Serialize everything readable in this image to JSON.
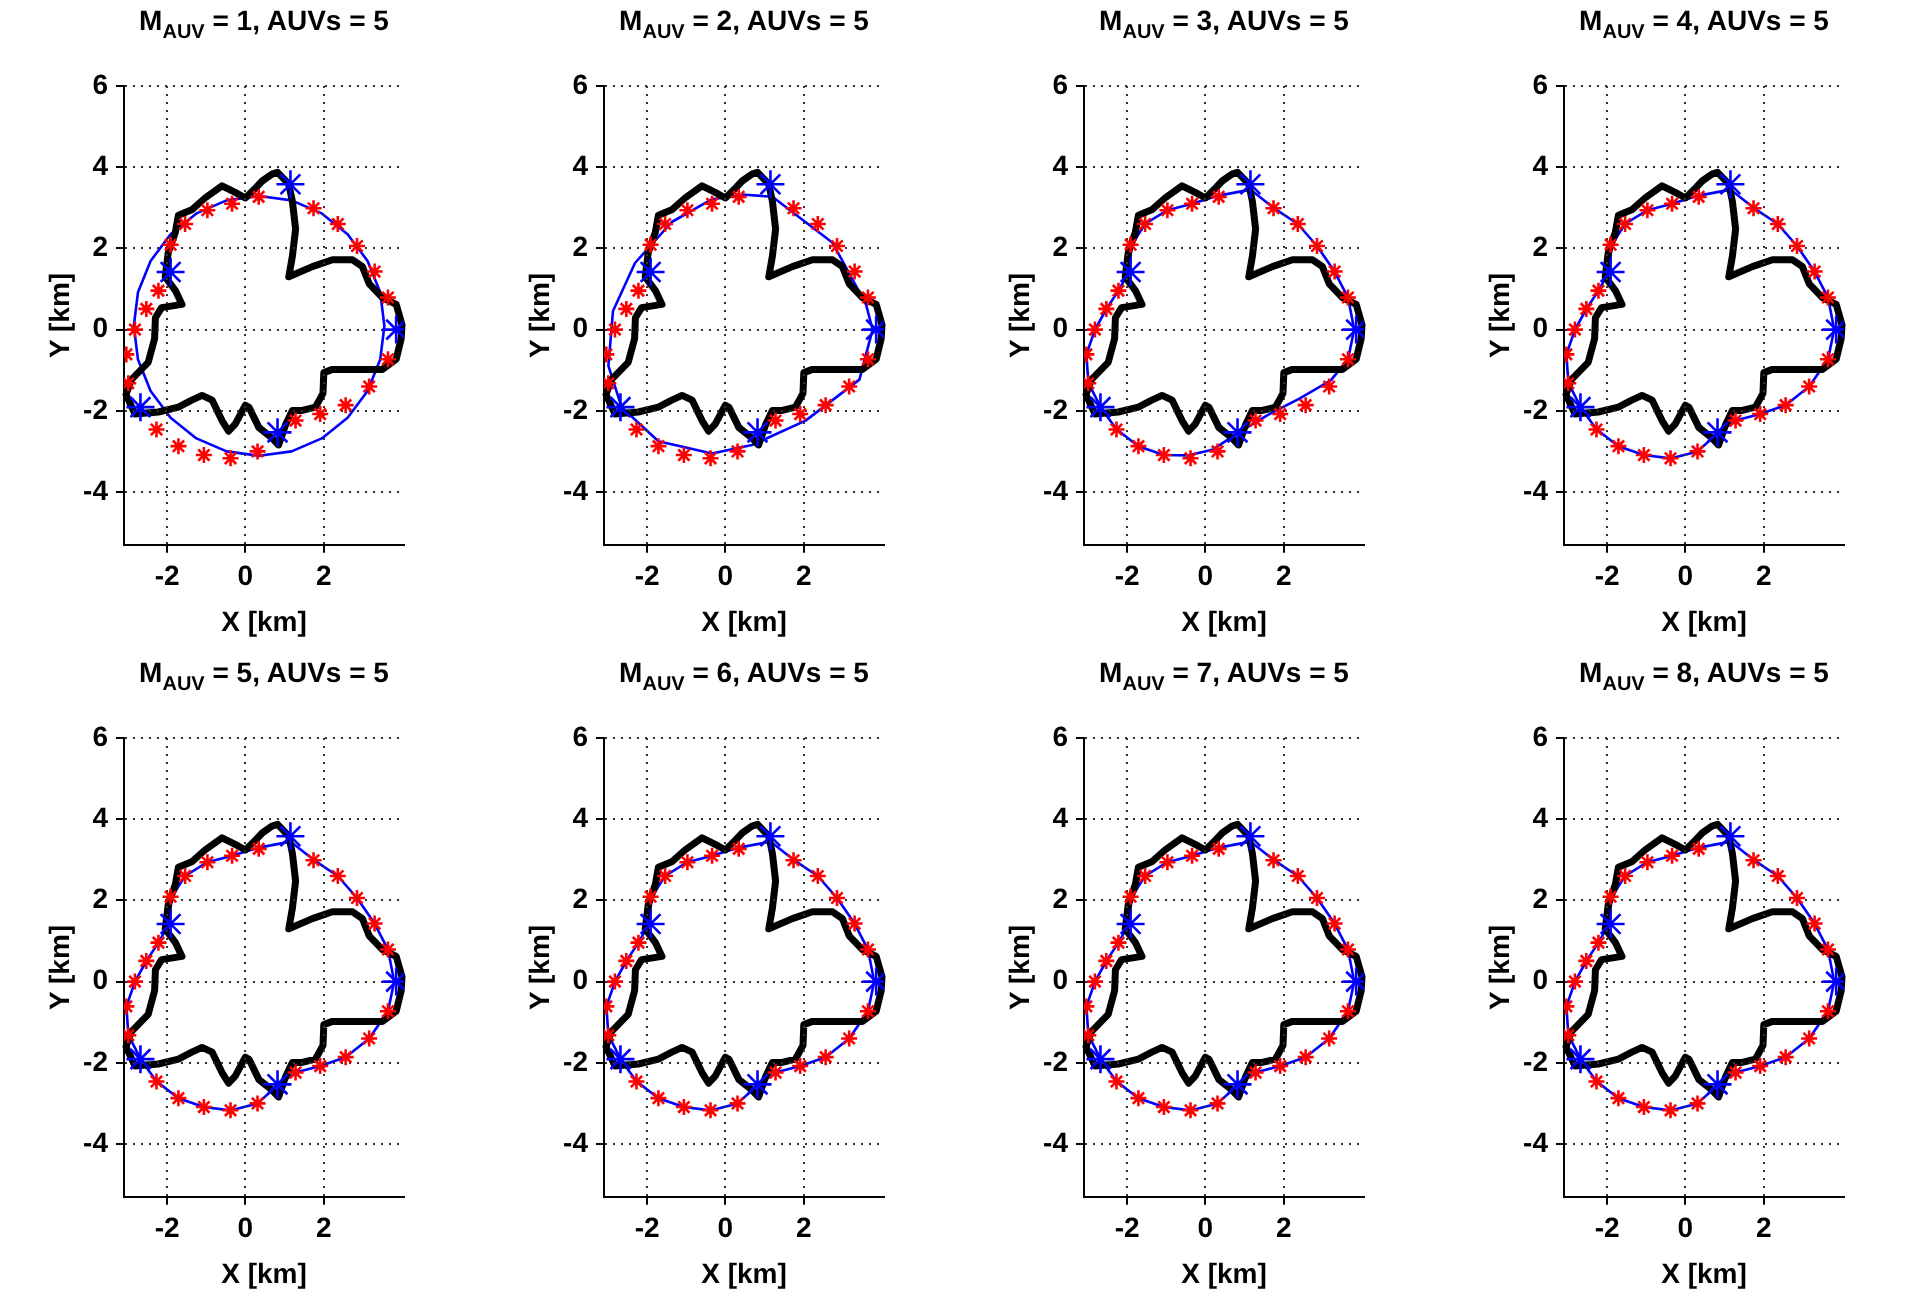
{
  "chart_data": [
    {
      "type": "scatter",
      "title": "M$_{AUV}$ = 1, AUVs = 5",
      "xlabel": "X [km]",
      "ylabel": "Y [km]",
      "xlim": [
        -3.1,
        4.05
      ],
      "ylim": [
        -5.3,
        6
      ],
      "xticks": [
        -2,
        0,
        2
      ],
      "yticks": [
        -4,
        -2,
        0,
        2,
        4,
        6
      ],
      "grid": true,
      "legend": false,
      "series": [
        {
          "type": "scatter",
          "color": "#ff0000",
          "marker": "cross",
          "x": [
            0.34,
            -0.34,
            -0.97,
            -1.54,
            -1.91,
            -2.22,
            -2.53,
            -2.82,
            -3.04,
            -2.99,
            -2.27,
            -1.71,
            -1.06,
            -0.38,
            0.31,
            1.28,
            1.91,
            2.56,
            3.16,
            3.64,
            3.64,
            3.3,
            2.85,
            2.36,
            1.74
          ],
          "values": [
            3.27,
            3.1,
            2.94,
            2.6,
            2.09,
            0.96,
            0.51,
            0,
            -0.61,
            -1.32,
            -2.46,
            -2.87,
            -3.09,
            -3.17,
            -3.0,
            -2.24,
            -2.08,
            -1.86,
            -1.4,
            -0.73,
            0.79,
            1.43,
            2.06,
            2.6,
            2.99
          ]
        },
        {
          "type": "scatter",
          "color": "#0000ff",
          "marker": "cross",
          "x": [
            1.15,
            -1.91,
            -2.68,
            0.82,
            3.85
          ],
          "values": [
            3.58,
            1.42,
            -1.91,
            -2.53,
            0
          ]
        }
      ]
    },
    {
      "type": "scatter",
      "title": "M$_{AUV}$ = 2, AUVs = 5",
      "xlabel": "X [km]",
      "ylabel": "Y [km]",
      "xlim": [
        -3.1,
        4.05
      ],
      "ylim": [
        -5.3,
        6
      ],
      "xticks": [
        -2,
        0,
        2
      ],
      "yticks": [
        -4,
        -2,
        0,
        2,
        4,
        6
      ],
      "grid": true,
      "legend": false,
      "series": [
        {
          "type": "scatter",
          "color": "#ff0000",
          "marker": "cross",
          "x": [
            0.34,
            -0.34,
            -0.97,
            -1.54,
            -1.91,
            -2.22,
            -2.53,
            -2.82,
            -3.04,
            -2.99,
            -2.27,
            -1.71,
            -1.06,
            -0.38,
            0.31,
            1.28,
            1.91,
            2.56,
            3.16,
            3.64,
            3.64,
            3.3,
            2.85,
            2.36,
            1.74
          ],
          "values": [
            3.27,
            3.1,
            2.94,
            2.6,
            2.09,
            0.96,
            0.51,
            0,
            -0.61,
            -1.32,
            -2.46,
            -2.87,
            -3.09,
            -3.17,
            -3.0,
            -2.24,
            -2.08,
            -1.86,
            -1.4,
            -0.73,
            0.79,
            1.43,
            2.06,
            2.6,
            2.99
          ]
        },
        {
          "type": "scatter",
          "color": "#0000ff",
          "marker": "cross",
          "x": [
            1.15,
            -1.91,
            -2.68,
            0.82,
            3.85
          ],
          "values": [
            3.58,
            1.42,
            -1.91,
            -2.53,
            0
          ]
        }
      ]
    },
    {
      "type": "scatter",
      "title": "M$_{AUV}$ = 3, AUVs = 5",
      "xlabel": "X [km]",
      "ylabel": "Y [km]",
      "xlim": [
        -3.1,
        4.05
      ],
      "ylim": [
        -5.3,
        6
      ],
      "xticks": [
        -2,
        0,
        2
      ],
      "yticks": [
        -4,
        -2,
        0,
        2,
        4,
        6
      ],
      "grid": true,
      "legend": false,
      "series": [
        {
          "type": "scatter",
          "color": "#ff0000",
          "marker": "cross",
          "x": [
            0.34,
            -0.34,
            -0.97,
            -1.54,
            -1.91,
            -2.22,
            -2.53,
            -2.82,
            -3.04,
            -2.99,
            -2.27,
            -1.71,
            -1.06,
            -0.38,
            0.31,
            1.28,
            1.91,
            2.56,
            3.16,
            3.64,
            3.64,
            3.3,
            2.85,
            2.36,
            1.74
          ],
          "values": [
            3.27,
            3.1,
            2.94,
            2.6,
            2.09,
            0.96,
            0.51,
            0,
            -0.61,
            -1.32,
            -2.46,
            -2.87,
            -3.09,
            -3.17,
            -3.0,
            -2.24,
            -2.08,
            -1.86,
            -1.4,
            -0.73,
            0.79,
            1.43,
            2.06,
            2.6,
            2.99
          ]
        },
        {
          "type": "scatter",
          "color": "#0000ff",
          "marker": "cross",
          "x": [
            1.15,
            -1.91,
            -2.68,
            0.82,
            3.85
          ],
          "values": [
            3.58,
            1.42,
            -1.91,
            -2.53,
            0
          ]
        }
      ]
    },
    {
      "type": "scatter",
      "title": "M$_{AUV}$ = 4, AUVs = 5",
      "xlabel": "X [km]",
      "ylabel": "Y [km]",
      "xlim": [
        -3.1,
        4.05
      ],
      "ylim": [
        -5.3,
        6
      ],
      "xticks": [
        -2,
        0,
        2
      ],
      "yticks": [
        -4,
        -2,
        0,
        2,
        4,
        6
      ],
      "grid": true,
      "legend": false,
      "series": [
        {
          "type": "scatter",
          "color": "#ff0000",
          "marker": "cross",
          "x": [
            0.34,
            -0.34,
            -0.97,
            -1.54,
            -1.91,
            -2.22,
            -2.53,
            -2.82,
            -3.04,
            -2.99,
            -2.27,
            -1.71,
            -1.06,
            -0.38,
            0.31,
            1.28,
            1.91,
            2.56,
            3.16,
            3.64,
            3.64,
            3.3,
            2.85,
            2.36,
            1.74
          ],
          "values": [
            3.27,
            3.1,
            2.94,
            2.6,
            2.09,
            0.96,
            0.51,
            0,
            -0.61,
            -1.32,
            -2.46,
            -2.87,
            -3.09,
            -3.17,
            -3.0,
            -2.24,
            -2.08,
            -1.86,
            -1.4,
            -0.73,
            0.79,
            1.43,
            2.06,
            2.6,
            2.99
          ]
        },
        {
          "type": "scatter",
          "color": "#0000ff",
          "marker": "cross",
          "x": [
            1.15,
            -1.91,
            -2.68,
            0.82,
            3.85
          ],
          "values": [
            3.58,
            1.42,
            -1.91,
            -2.53,
            0
          ]
        }
      ]
    },
    {
      "type": "scatter",
      "title": "M$_{AUV}$ = 5, AUVs = 5",
      "xlabel": "X [km]",
      "ylabel": "Y [km]",
      "xlim": [
        -3.1,
        4.05
      ],
      "ylim": [
        -5.3,
        6
      ],
      "xticks": [
        -2,
        0,
        2
      ],
      "yticks": [
        -4,
        -2,
        0,
        2,
        4,
        6
      ],
      "grid": true,
      "legend": false,
      "series": [
        {
          "type": "scatter",
          "color": "#ff0000",
          "marker": "cross",
          "x": [
            0.34,
            -0.34,
            -0.97,
            -1.54,
            -1.91,
            -2.22,
            -2.53,
            -2.82,
            -3.04,
            -2.99,
            -2.27,
            -1.71,
            -1.06,
            -0.38,
            0.31,
            1.28,
            1.91,
            2.56,
            3.16,
            3.64,
            3.64,
            3.3,
            2.85,
            2.36,
            1.74
          ],
          "values": [
            3.27,
            3.1,
            2.94,
            2.6,
            2.09,
            0.96,
            0.51,
            0,
            -0.61,
            -1.32,
            -2.46,
            -2.87,
            -3.09,
            -3.17,
            -3.0,
            -2.24,
            -2.08,
            -1.86,
            -1.4,
            -0.73,
            0.79,
            1.43,
            2.06,
            2.6,
            2.99
          ]
        },
        {
          "type": "scatter",
          "color": "#0000ff",
          "marker": "cross",
          "x": [
            1.15,
            -1.91,
            -2.68,
            0.82,
            3.85
          ],
          "values": [
            3.58,
            1.42,
            -1.91,
            -2.53,
            0
          ]
        }
      ]
    },
    {
      "type": "scatter",
      "title": "M$_{AUV}$ = 6, AUVs = 5",
      "xlabel": "X [km]",
      "ylabel": "Y [km]",
      "xlim": [
        -3.1,
        4.05
      ],
      "ylim": [
        -5.3,
        6
      ],
      "xticks": [
        -2,
        0,
        2
      ],
      "yticks": [
        -4,
        -2,
        0,
        2,
        4,
        6
      ],
      "grid": true,
      "legend": false,
      "series": [
        {
          "type": "scatter",
          "color": "#ff0000",
          "marker": "cross",
          "x": [
            0.34,
            -0.34,
            -0.97,
            -1.54,
            -1.91,
            -2.22,
            -2.53,
            -2.82,
            -3.04,
            -2.99,
            -2.27,
            -1.71,
            -1.06,
            -0.38,
            0.31,
            1.28,
            1.91,
            2.56,
            3.16,
            3.64,
            3.64,
            3.3,
            2.85,
            2.36,
            1.74
          ],
          "values": [
            3.27,
            3.1,
            2.94,
            2.6,
            2.09,
            0.96,
            0.51,
            0,
            -0.61,
            -1.32,
            -2.46,
            -2.87,
            -3.09,
            -3.17,
            -3.0,
            -2.24,
            -2.08,
            -1.86,
            -1.4,
            -0.73,
            0.79,
            1.43,
            2.06,
            2.6,
            2.99
          ]
        },
        {
          "type": "scatter",
          "color": "#0000ff",
          "marker": "cross",
          "x": [
            1.15,
            -1.91,
            -2.68,
            0.82,
            3.85
          ],
          "values": [
            3.58,
            1.42,
            -1.91,
            -2.53,
            0
          ]
        }
      ]
    },
    {
      "type": "scatter",
      "title": "M$_{AUV}$ = 7, AUVs = 5",
      "xlabel": "X [km]",
      "ylabel": "Y [km]",
      "xlim": [
        -3.1,
        4.05
      ],
      "ylim": [
        -5.3,
        6
      ],
      "xticks": [
        -2,
        0,
        2
      ],
      "yticks": [
        -4,
        -2,
        0,
        2,
        4,
        6
      ],
      "grid": true,
      "legend": false,
      "series": [
        {
          "type": "scatter",
          "color": "#ff0000",
          "marker": "cross",
          "x": [
            0.34,
            -0.34,
            -0.97,
            -1.54,
            -1.91,
            -2.22,
            -2.53,
            -2.82,
            -3.04,
            -2.99,
            -2.27,
            -1.71,
            -1.06,
            -0.38,
            0.31,
            1.28,
            1.91,
            2.56,
            3.16,
            3.64,
            3.64,
            3.3,
            2.85,
            2.36,
            1.74
          ],
          "values": [
            3.27,
            3.1,
            2.94,
            2.6,
            2.09,
            0.96,
            0.51,
            0,
            -0.61,
            -1.32,
            -2.46,
            -2.87,
            -3.09,
            -3.17,
            -3.0,
            -2.24,
            -2.08,
            -1.86,
            -1.4,
            -0.73,
            0.79,
            1.43,
            2.06,
            2.6,
            2.99
          ]
        },
        {
          "type": "scatter",
          "color": "#0000ff",
          "marker": "cross",
          "x": [
            1.15,
            -1.91,
            -2.68,
            0.82,
            3.85
          ],
          "values": [
            3.58,
            1.42,
            -1.91,
            -2.53,
            0
          ]
        }
      ]
    },
    {
      "type": "scatter",
      "title": "M$_{AUV}$ = 8, AUVs = 5",
      "xlabel": "X [km]",
      "ylabel": "Y [km]",
      "xlim": [
        -3.1,
        4.05
      ],
      "ylim": [
        -5.3,
        6
      ],
      "xticks": [
        -2,
        0,
        2
      ],
      "yticks": [
        -4,
        -2,
        0,
        2,
        4,
        6
      ],
      "grid": true,
      "legend": false,
      "series": [
        {
          "type": "scatter",
          "color": "#ff0000",
          "marker": "cross",
          "x": [
            0.34,
            -0.34,
            -0.97,
            -1.54,
            -1.91,
            -2.22,
            -2.53,
            -2.82,
            -3.04,
            -2.99,
            -2.27,
            -1.71,
            -1.06,
            -0.38,
            0.31,
            1.28,
            1.91,
            2.56,
            3.16,
            3.64,
            3.64,
            3.3,
            2.85,
            2.36,
            1.74
          ],
          "values": [
            3.27,
            3.1,
            2.94,
            2.6,
            2.09,
            0.96,
            0.51,
            0,
            -0.61,
            -1.32,
            -2.46,
            -2.87,
            -3.09,
            -3.17,
            -3.0,
            -2.24,
            -2.08,
            -1.86,
            -1.4,
            -0.73,
            0.79,
            1.43,
            2.06,
            2.6,
            2.99
          ]
        },
        {
          "type": "scatter",
          "color": "#0000ff",
          "marker": "cross",
          "x": [
            1.15,
            -1.91,
            -2.68,
            0.82,
            3.85
          ],
          "values": [
            3.58,
            1.42,
            -1.91,
            -2.53,
            0
          ]
        }
      ]
    }
  ]
}
